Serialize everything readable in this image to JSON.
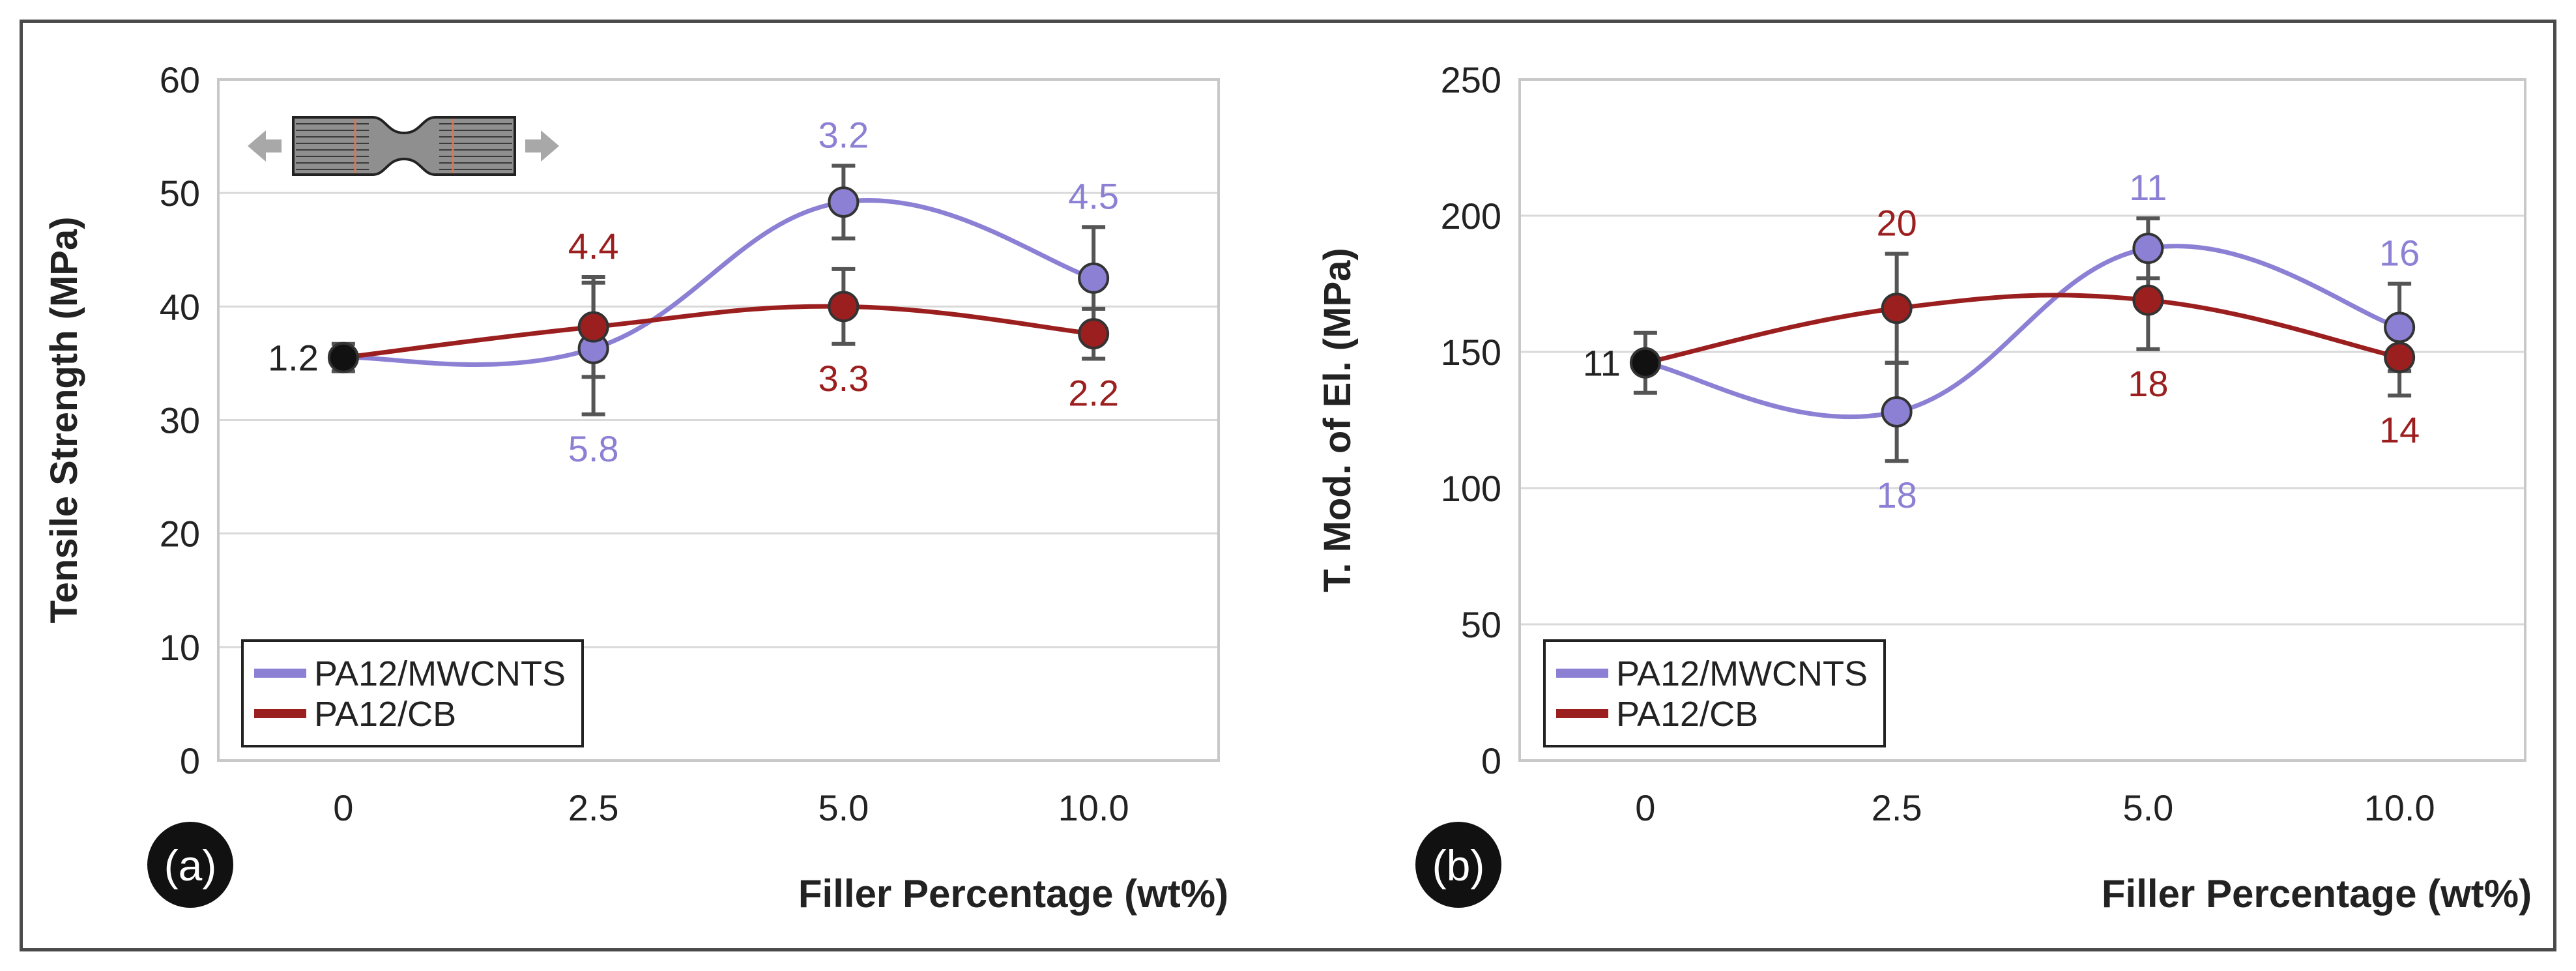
{
  "colors": {
    "mwcnt": "#8b80d4",
    "cb": "#9c1f1f",
    "base_point": "#111111",
    "grid": "#d9d9d9",
    "axis": "#c8c8c8",
    "text": "#222222",
    "error": "#555555"
  },
  "icons": {
    "specimen": "dogbone-tensile-specimen-icon"
  },
  "chart_data": [
    {
      "type": "line",
      "panel_label": "(a)",
      "title": "",
      "xlabel": "Filler Percentage (wt%)",
      "ylabel": "Tensile Strength (MPa)",
      "categories": [
        "0",
        "2.5",
        "5.0",
        "10.0"
      ],
      "ylim": [
        0,
        60
      ],
      "yticks": [
        "0",
        "10",
        "20",
        "30",
        "40",
        "50",
        "60"
      ],
      "grid": true,
      "legend": "bottom-left",
      "base": {
        "value": 35.5,
        "error": 1.2,
        "label": "1.2"
      },
      "series": [
        {
          "name": "PA12/MWCNTS",
          "color_key": "mwcnt",
          "values": [
            35.5,
            36.3,
            49.2,
            42.5
          ],
          "errors": [
            1.2,
            5.8,
            3.2,
            4.5
          ],
          "labels": [
            "",
            "5.8",
            "3.2",
            "4.5"
          ],
          "label_pos": [
            "",
            "below",
            "above",
            "above"
          ]
        },
        {
          "name": "PA12/CB",
          "color_key": "cb",
          "values": [
            35.5,
            38.2,
            40.0,
            37.6
          ],
          "errors": [
            1.2,
            4.4,
            3.3,
            2.2
          ],
          "labels": [
            "",
            "4.4",
            "3.3",
            "2.2"
          ],
          "label_pos": [
            "",
            "above",
            "below",
            "below"
          ]
        }
      ]
    },
    {
      "type": "line",
      "panel_label": "(b)",
      "title": "",
      "xlabel": "Filler Percentage (wt%)",
      "ylabel": "T. Mod. of El. (MPa)",
      "categories": [
        "0",
        "2.5",
        "5.0",
        "10.0"
      ],
      "ylim": [
        0,
        250
      ],
      "yticks": [
        "0",
        "50",
        "100",
        "150",
        "200",
        "250"
      ],
      "grid": true,
      "legend": "bottom-left",
      "base": {
        "value": 146,
        "error": 11,
        "label": "11"
      },
      "series": [
        {
          "name": "PA12/MWCNTS",
          "color_key": "mwcnt",
          "values": [
            146,
            128,
            188,
            159
          ],
          "errors": [
            11,
            18,
            11,
            16
          ],
          "labels": [
            "",
            "18",
            "11",
            "16"
          ],
          "label_pos": [
            "",
            "below",
            "above",
            "above"
          ]
        },
        {
          "name": "PA12/CB",
          "color_key": "cb",
          "values": [
            146,
            166,
            169,
            148
          ],
          "errors": [
            11,
            20,
            18,
            14
          ],
          "labels": [
            "",
            "20",
            "18",
            "14"
          ],
          "label_pos": [
            "",
            "above",
            "below",
            "below"
          ]
        }
      ]
    }
  ]
}
